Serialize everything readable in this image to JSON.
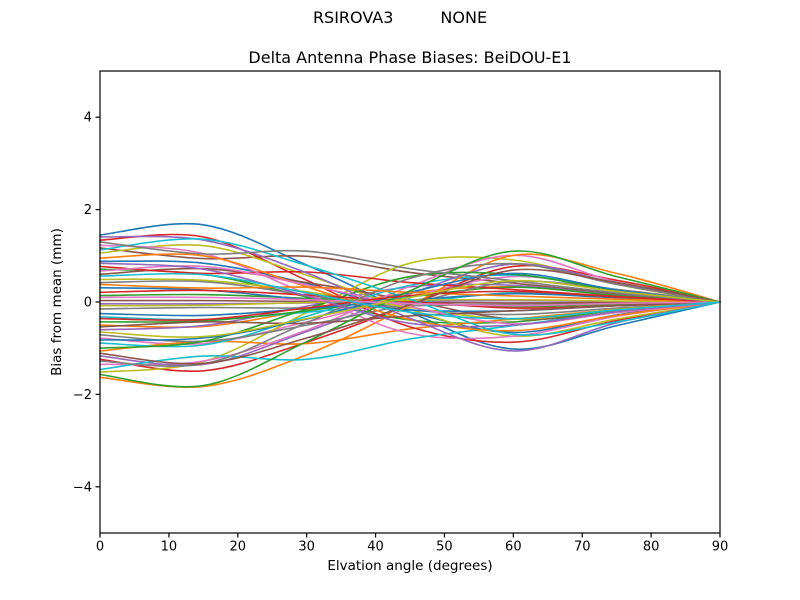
{
  "header": {
    "station": "RSIROVA3",
    "mode": "NONE"
  },
  "colors": {
    "background": "#ffffff",
    "axes": "#000000",
    "text": "#000000"
  },
  "chart_data": {
    "type": "line",
    "title": "Delta Antenna Phase Biases: BeiDOU-E1",
    "xlabel": "Elvation angle (degrees)",
    "ylabel": "Bias from mean (mm)",
    "xlim": [
      0,
      90
    ],
    "ylim": [
      -5,
      5
    ],
    "x_ticks": [
      0,
      10,
      20,
      30,
      40,
      50,
      60,
      70,
      80,
      90
    ],
    "y_tick_values": [
      -4,
      -2,
      0,
      2,
      4
    ],
    "y_tick_labels": [
      "−4",
      "−2",
      "0",
      "2",
      "4"
    ],
    "grid": false,
    "legend": false,
    "x_control": [
      0,
      15,
      30,
      45,
      60,
      75,
      90
    ],
    "palette": [
      "#1f77b4",
      "#ff7f0e",
      "#2ca02c",
      "#d62728",
      "#9467bd",
      "#8c564b",
      "#e377c2",
      "#7f7f7f",
      "#bcbd22",
      "#17becf"
    ],
    "series": [
      {
        "c": 0,
        "y": [
          1.45,
          1.67,
          0.8,
          -0.22,
          -1.02,
          -0.51,
          0
        ]
      },
      {
        "c": 1,
        "y": [
          -0.5,
          -0.53,
          -0.18,
          0.2,
          0.33,
          0.15,
          0
        ]
      },
      {
        "c": 2,
        "y": [
          0.71,
          0.6,
          0.11,
          -0.39,
          -0.43,
          -0.18,
          0
        ]
      },
      {
        "c": 3,
        "y": [
          -1.24,
          -1.49,
          -0.87,
          -0.06,
          0.77,
          0.47,
          0
        ]
      },
      {
        "c": 4,
        "y": [
          -0.04,
          -0.04,
          -0.02,
          0.01,
          0.03,
          0.01,
          0
        ]
      },
      {
        "c": 5,
        "y": [
          1.17,
          0.94,
          0.99,
          0.64,
          0.41,
          0.18,
          0
        ]
      },
      {
        "c": 6,
        "y": [
          -0.78,
          -0.9,
          -0.43,
          0.12,
          0.55,
          0.27,
          0
        ]
      },
      {
        "c": 7,
        "y": [
          0.42,
          0.44,
          0.15,
          -0.17,
          -0.27,
          -0.13,
          0
        ]
      },
      {
        "c": 8,
        "y": [
          -1.52,
          -1.29,
          -0.23,
          0.84,
          0.91,
          0.38,
          0
        ]
      },
      {
        "c": 9,
        "y": [
          -0.32,
          -0.38,
          -0.22,
          -0.02,
          0.2,
          0.12,
          0
        ]
      },
      {
        "c": 0,
        "y": [
          0.88,
          0.84,
          0.4,
          -0.22,
          -0.66,
          -0.28,
          0
        ]
      },
      {
        "c": 1,
        "y": [
          -1.06,
          -0.85,
          -0.9,
          -0.58,
          -0.37,
          -0.16,
          0
        ]
      },
      {
        "c": 2,
        "y": [
          0.14,
          0.16,
          0.08,
          -0.02,
          -0.1,
          -0.05,
          0
        ]
      },
      {
        "c": 3,
        "y": [
          1.34,
          1.41,
          0.47,
          -0.54,
          -0.87,
          -0.4,
          0
        ]
      },
      {
        "c": 4,
        "y": [
          -0.6,
          -0.51,
          -0.09,
          0.33,
          0.36,
          0.15,
          0
        ]
      },
      {
        "c": 5,
        "y": [
          0.6,
          0.72,
          0.42,
          0.03,
          -0.37,
          -0.23,
          0
        ]
      },
      {
        "c": 6,
        "y": [
          -1.35,
          -1.28,
          -0.61,
          0.34,
          1.01,
          0.43,
          0
        ]
      },
      {
        "c": 7,
        "y": [
          -0.15,
          -0.12,
          -0.13,
          -0.08,
          -0.05,
          -0.02,
          0
        ]
      },
      {
        "c": 8,
        "y": [
          1.06,
          1.22,
          0.58,
          -0.16,
          -0.74,
          -0.37,
          0
        ]
      },
      {
        "c": 9,
        "y": [
          -0.89,
          -0.93,
          -0.31,
          0.36,
          0.58,
          0.27,
          0
        ]
      },
      {
        "c": 0,
        "y": [
          0.31,
          0.26,
          0.05,
          -0.17,
          -0.19,
          -0.08,
          0
        ]
      },
      {
        "c": 1,
        "y": [
          -1.63,
          -1.83,
          -1.14,
          -0.08,
          1.01,
          0.62,
          0
        ]
      },
      {
        "c": 2,
        "y": [
          -0.43,
          -0.41,
          -0.19,
          0.11,
          0.32,
          0.14,
          0
        ]
      },
      {
        "c": 3,
        "y": [
          0.77,
          0.62,
          0.65,
          0.42,
          0.27,
          0.12,
          0
        ]
      },
      {
        "c": 4,
        "y": [
          -1.17,
          -1.35,
          -0.64,
          0.18,
          0.82,
          0.41,
          0
        ]
      },
      {
        "c": 5,
        "y": [
          0.03,
          0.03,
          0.01,
          -0.01,
          -0.02,
          -0.01,
          0
        ]
      },
      {
        "c": 6,
        "y": [
          1.23,
          1.05,
          0.18,
          -0.68,
          -0.74,
          -0.31,
          0
        ]
      },
      {
        "c": 7,
        "y": [
          -0.71,
          -0.85,
          -0.5,
          -0.04,
          0.44,
          0.27,
          0
        ]
      },
      {
        "c": 8,
        "y": [
          0.49,
          0.47,
          0.22,
          -0.12,
          -0.37,
          -0.16,
          0
        ]
      },
      {
        "c": 9,
        "y": [
          -1.46,
          -1.17,
          -1.24,
          -0.8,
          -0.51,
          -0.22,
          0
        ]
      },
      {
        "c": 0,
        "y": [
          -0.25,
          -0.29,
          -0.14,
          0.04,
          0.18,
          0.09,
          0
        ]
      },
      {
        "c": 1,
        "y": [
          0.95,
          1.0,
          0.33,
          -0.38,
          -0.62,
          -0.29,
          0
        ]
      },
      {
        "c": 2,
        "y": [
          -1.0,
          -0.85,
          -0.15,
          0.55,
          0.6,
          0.25,
          0
        ]
      },
      {
        "c": 3,
        "y": [
          0.21,
          0.25,
          0.15,
          0.01,
          -0.13,
          -0.08,
          0
        ]
      },
      {
        "c": 4,
        "y": [
          1.41,
          1.34,
          0.63,
          -0.35,
          -1.06,
          -0.45,
          0
        ]
      },
      {
        "c": 5,
        "y": [
          -0.54,
          -0.43,
          -0.46,
          -0.3,
          -0.19,
          -0.08,
          0
        ]
      },
      {
        "c": 6,
        "y": [
          0.67,
          0.77,
          0.37,
          -0.1,
          -0.47,
          -0.23,
          0
        ]
      },
      {
        "c": 7,
        "y": [
          -1.28,
          -1.34,
          -0.45,
          0.51,
          0.83,
          0.38,
          0
        ]
      },
      {
        "c": 8,
        "y": [
          -0.08,
          -0.07,
          -0.01,
          0.04,
          0.05,
          0.02,
          0
        ]
      },
      {
        "c": 9,
        "y": [
          1.13,
          1.36,
          0.79,
          0.06,
          -0.7,
          -0.43,
          0
        ]
      },
      {
        "c": 0,
        "y": [
          -0.82,
          -0.78,
          -0.37,
          0.21,
          0.62,
          0.26,
          0
        ]
      },
      {
        "c": 1,
        "y": [
          0.38,
          0.3,
          0.32,
          0.21,
          0.13,
          0.06,
          0
        ]
      },
      {
        "c": 2,
        "y": [
          -1.57,
          -1.81,
          -0.86,
          0.24,
          1.1,
          0.55,
          0
        ]
      },
      {
        "c": 3,
        "y": [
          -0.36,
          -0.38,
          -0.13,
          0.14,
          0.23,
          0.11,
          0
        ]
      },
      {
        "c": 4,
        "y": [
          0.84,
          0.71,
          0.13,
          -0.46,
          -0.5,
          -0.21,
          0
        ]
      },
      {
        "c": 5,
        "y": [
          -1.11,
          -1.33,
          -0.78,
          -0.06,
          0.69,
          0.42,
          0
        ]
      },
      {
        "c": 6,
        "y": [
          0.1,
          0.1,
          0.05,
          -0.03,
          -0.08,
          -0.03,
          0
        ]
      },
      {
        "c": 7,
        "y": [
          1.3,
          1.04,
          1.1,
          0.72,
          0.46,
          0.2,
          0
        ]
      },
      {
        "c": 8,
        "y": [
          -0.65,
          -0.75,
          -0.36,
          0.1,
          0.46,
          0.23,
          0
        ]
      },
      {
        "c": 9,
        "y": [
          0.56,
          0.59,
          0.2,
          -0.22,
          -0.36,
          -0.17,
          0
        ]
      }
    ]
  }
}
